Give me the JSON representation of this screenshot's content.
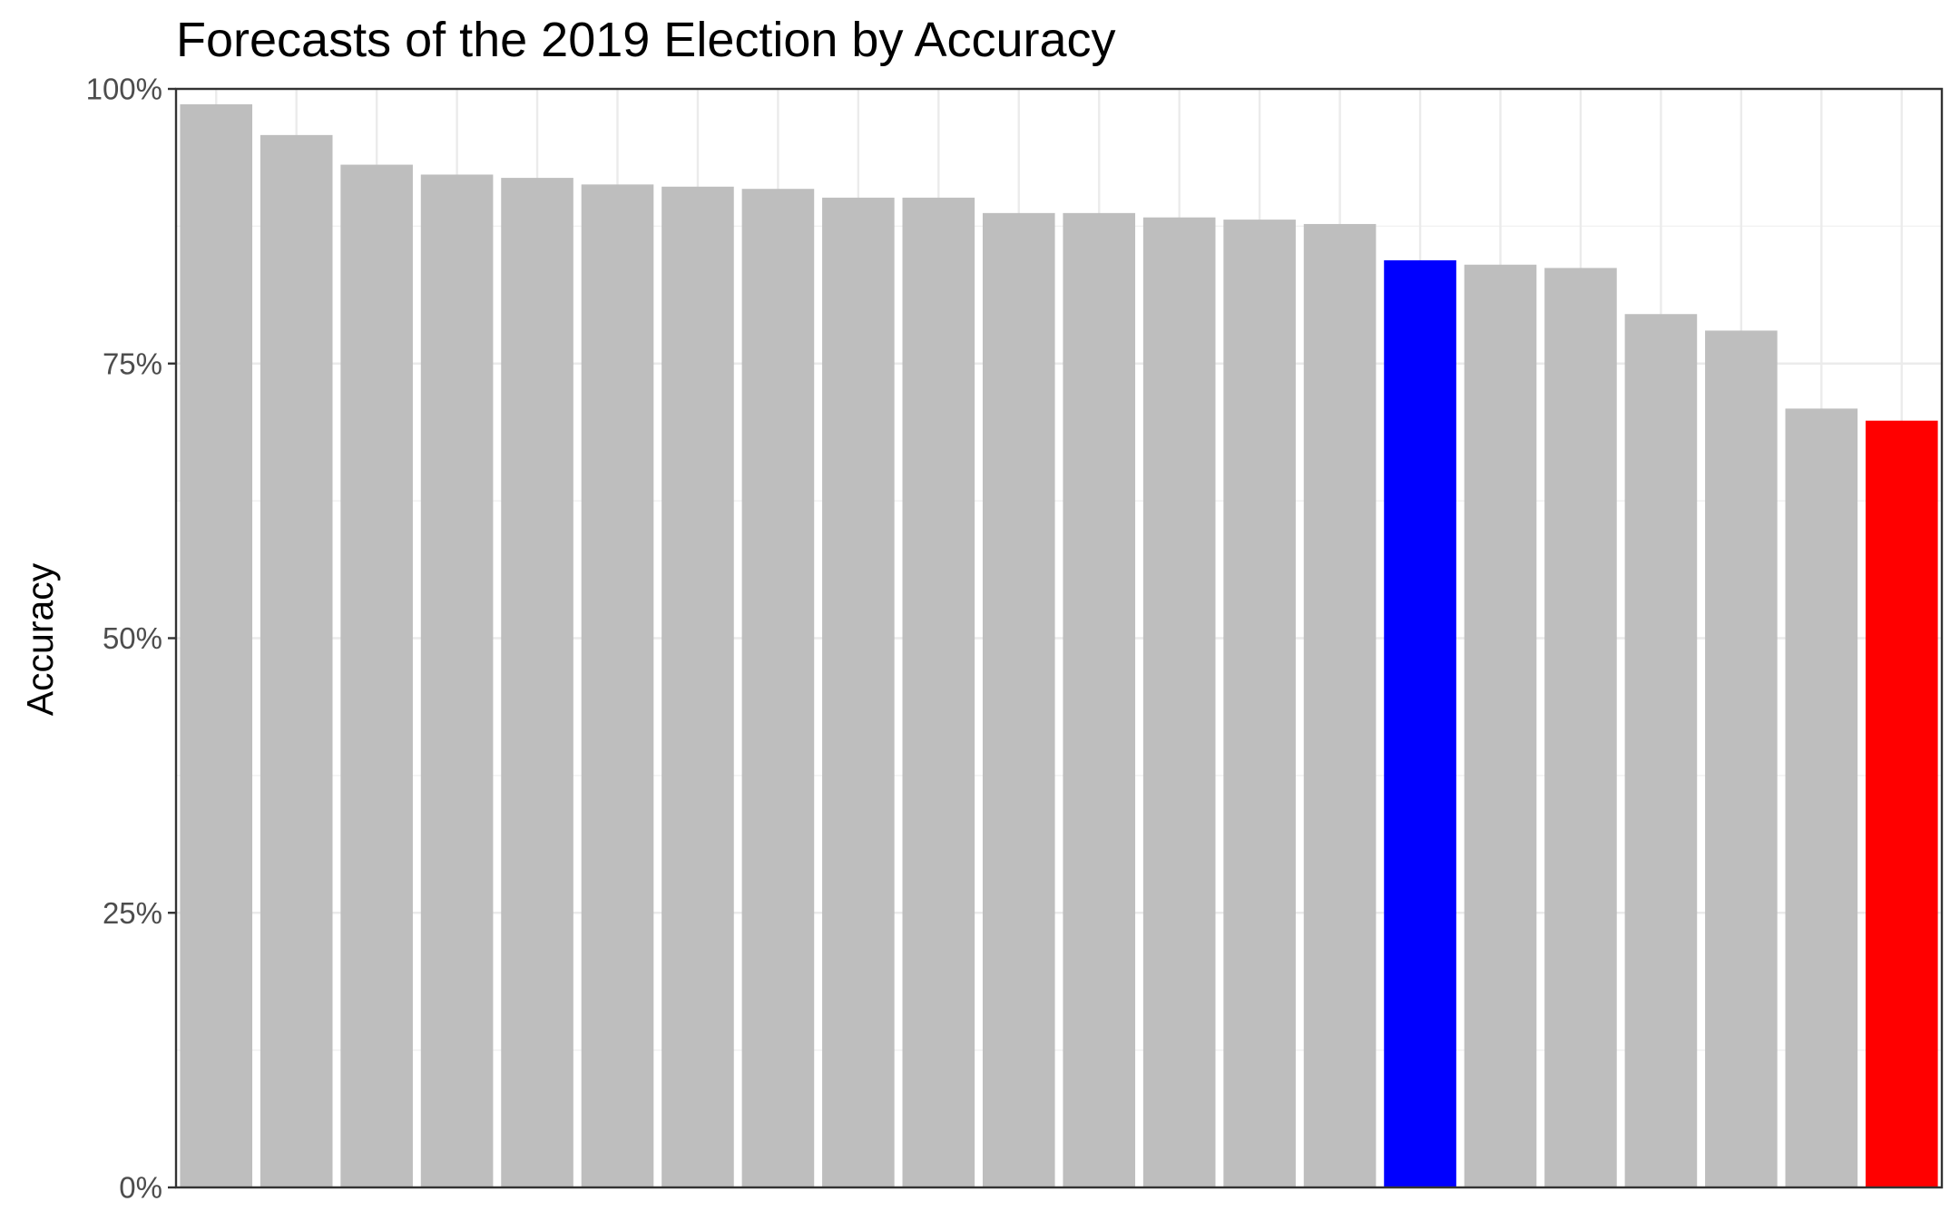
{
  "chart_data": {
    "type": "bar",
    "title": "Forecasts of the 2019 Election by Accuracy",
    "xlabel": "",
    "ylabel": "Accuracy",
    "ylim": [
      0,
      1
    ],
    "y_ticks": [
      0,
      0.25,
      0.5,
      0.75,
      1.0
    ],
    "y_tick_labels": [
      "0%",
      "25%",
      "50%",
      "75%",
      "100%"
    ],
    "grid": true,
    "legend": "none",
    "values": [
      0.986,
      0.958,
      0.931,
      0.922,
      0.919,
      0.913,
      0.911,
      0.909,
      0.901,
      0.901,
      0.887,
      0.887,
      0.883,
      0.881,
      0.877,
      0.844,
      0.84,
      0.837,
      0.795,
      0.78,
      0.709,
      0.698
    ],
    "colors": [
      "#bebebe",
      "#bebebe",
      "#bebebe",
      "#bebebe",
      "#bebebe",
      "#bebebe",
      "#bebebe",
      "#bebebe",
      "#bebebe",
      "#bebebe",
      "#bebebe",
      "#bebebe",
      "#bebebe",
      "#bebebe",
      "#bebebe",
      "#0000ff",
      "#bebebe",
      "#bebebe",
      "#bebebe",
      "#bebebe",
      "#bebebe",
      "#ff0000"
    ]
  }
}
